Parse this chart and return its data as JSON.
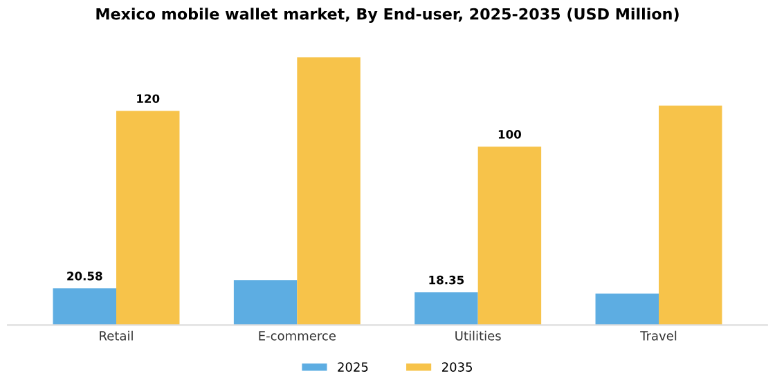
{
  "chart_data": {
    "type": "bar",
    "title": "Mexico mobile wallet market, By End-user, 2025-2035 (USD Million)",
    "categories": [
      "Retail",
      "E-commerce",
      "Utilities",
      "Travel"
    ],
    "series": [
      {
        "name": "2025",
        "color": "#5dade2",
        "values": [
          20.58,
          25.2,
          18.35,
          17.7
        ],
        "value_labels": [
          "20.58",
          null,
          "18.35",
          null
        ]
      },
      {
        "name": "2035",
        "color": "#f7c34a",
        "values": [
          120,
          150,
          100,
          123
        ],
        "value_labels": [
          "120",
          null,
          "100",
          null
        ]
      }
    ],
    "legend": "bottom",
    "grid": false
  }
}
